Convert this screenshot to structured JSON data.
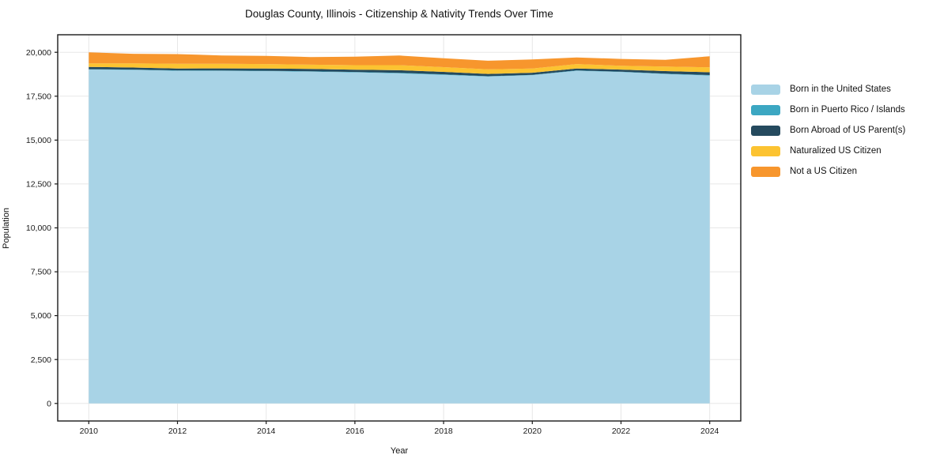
{
  "chart_data": {
    "type": "area",
    "stacked": true,
    "title": "Douglas County, Illinois - Citizenship & Nativity Trends Over Time",
    "xlabel": "Year",
    "ylabel": "Population",
    "grid": true,
    "legend_position": "right-outside",
    "x": [
      2010,
      2011,
      2012,
      2013,
      2014,
      2015,
      2016,
      2017,
      2018,
      2019,
      2020,
      2021,
      2022,
      2023,
      2024
    ],
    "series": [
      {
        "name": "Born in the United States",
        "color": "#a8d3e6",
        "values": [
          19020,
          19000,
          18950,
          18940,
          18930,
          18900,
          18860,
          18800,
          18720,
          18620,
          18700,
          18950,
          18880,
          18760,
          18680
        ]
      },
      {
        "name": "Born in Puerto Rico / Islands",
        "color": "#3ca7c2",
        "values": [
          20,
          15,
          20,
          25,
          20,
          15,
          20,
          30,
          25,
          20,
          15,
          20,
          15,
          20,
          25
        ]
      },
      {
        "name": "Born Abroad of US Parent(s)",
        "color": "#254a5e",
        "values": [
          130,
          120,
          110,
          120,
          130,
          140,
          130,
          150,
          140,
          130,
          120,
          110,
          120,
          150,
          160
        ]
      },
      {
        "name": "Naturalized US Citizen",
        "color": "#fcc331",
        "values": [
          195,
          230,
          270,
          260,
          250,
          240,
          260,
          290,
          270,
          260,
          240,
          250,
          220,
          260,
          280
        ]
      },
      {
        "name": "Not a US Citizen",
        "color": "#f7962d",
        "values": [
          630,
          550,
          550,
          475,
          470,
          435,
          485,
          545,
          510,
          490,
          515,
          380,
          390,
          385,
          630
        ]
      }
    ],
    "xticks": [
      2010,
      2012,
      2014,
      2016,
      2018,
      2020,
      2022,
      2024
    ],
    "yticks": [
      0,
      2500,
      5000,
      7500,
      10000,
      12500,
      15000,
      17500,
      20000
    ],
    "ytick_labels": [
      "0",
      "2,500",
      "5,000",
      "7,500",
      "10,000",
      "12,500",
      "15,000",
      "17,500",
      "20,000"
    ],
    "xlim": [
      2009.3,
      2024.7
    ],
    "ylim": [
      -1000,
      21000
    ],
    "colors": {
      "grid": "#e7e7e7",
      "axis_border": "#1a1a1a",
      "tick_text": "#1a1a1a",
      "background": "#ffffff"
    }
  }
}
